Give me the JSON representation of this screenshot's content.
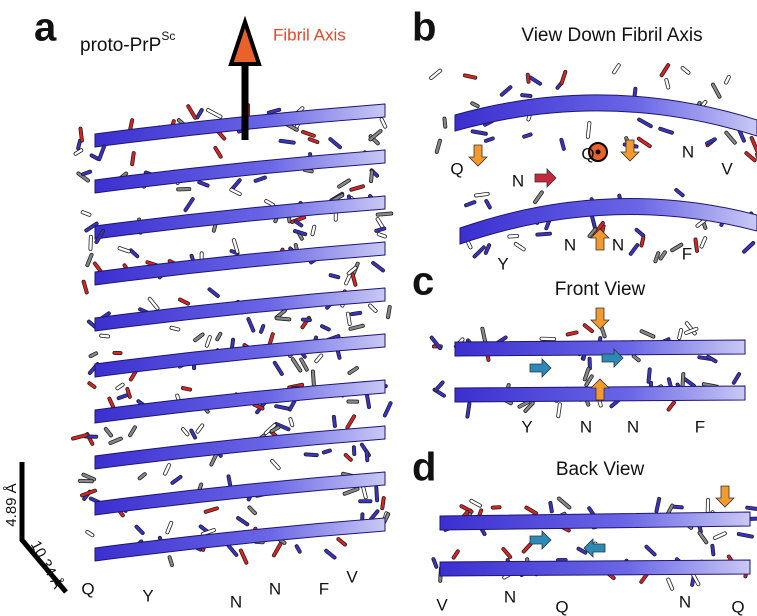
{
  "panel_a": {
    "label": "a",
    "protein": "proto-PrP",
    "protein_superscript": "Sc",
    "axis_label": "Fibril Axis",
    "spacing_labels": [
      "4.89 Å",
      "10.34 Å"
    ],
    "residues": [
      "Q",
      "Y",
      "N",
      "N",
      "F",
      "V"
    ]
  },
  "panel_b": {
    "label": "b",
    "title": "View Down Fibril Axis",
    "residues": [
      "Q",
      "N",
      "Q",
      "N",
      "V",
      "Y",
      "N",
      "N",
      "F"
    ]
  },
  "panel_c": {
    "label": "c",
    "title": "Front View",
    "residues": [
      "Y",
      "N",
      "N",
      "F"
    ]
  },
  "panel_d": {
    "label": "d",
    "title": "Back View",
    "residues": [
      "V",
      "N",
      "Q",
      "N",
      "Q"
    ]
  }
}
